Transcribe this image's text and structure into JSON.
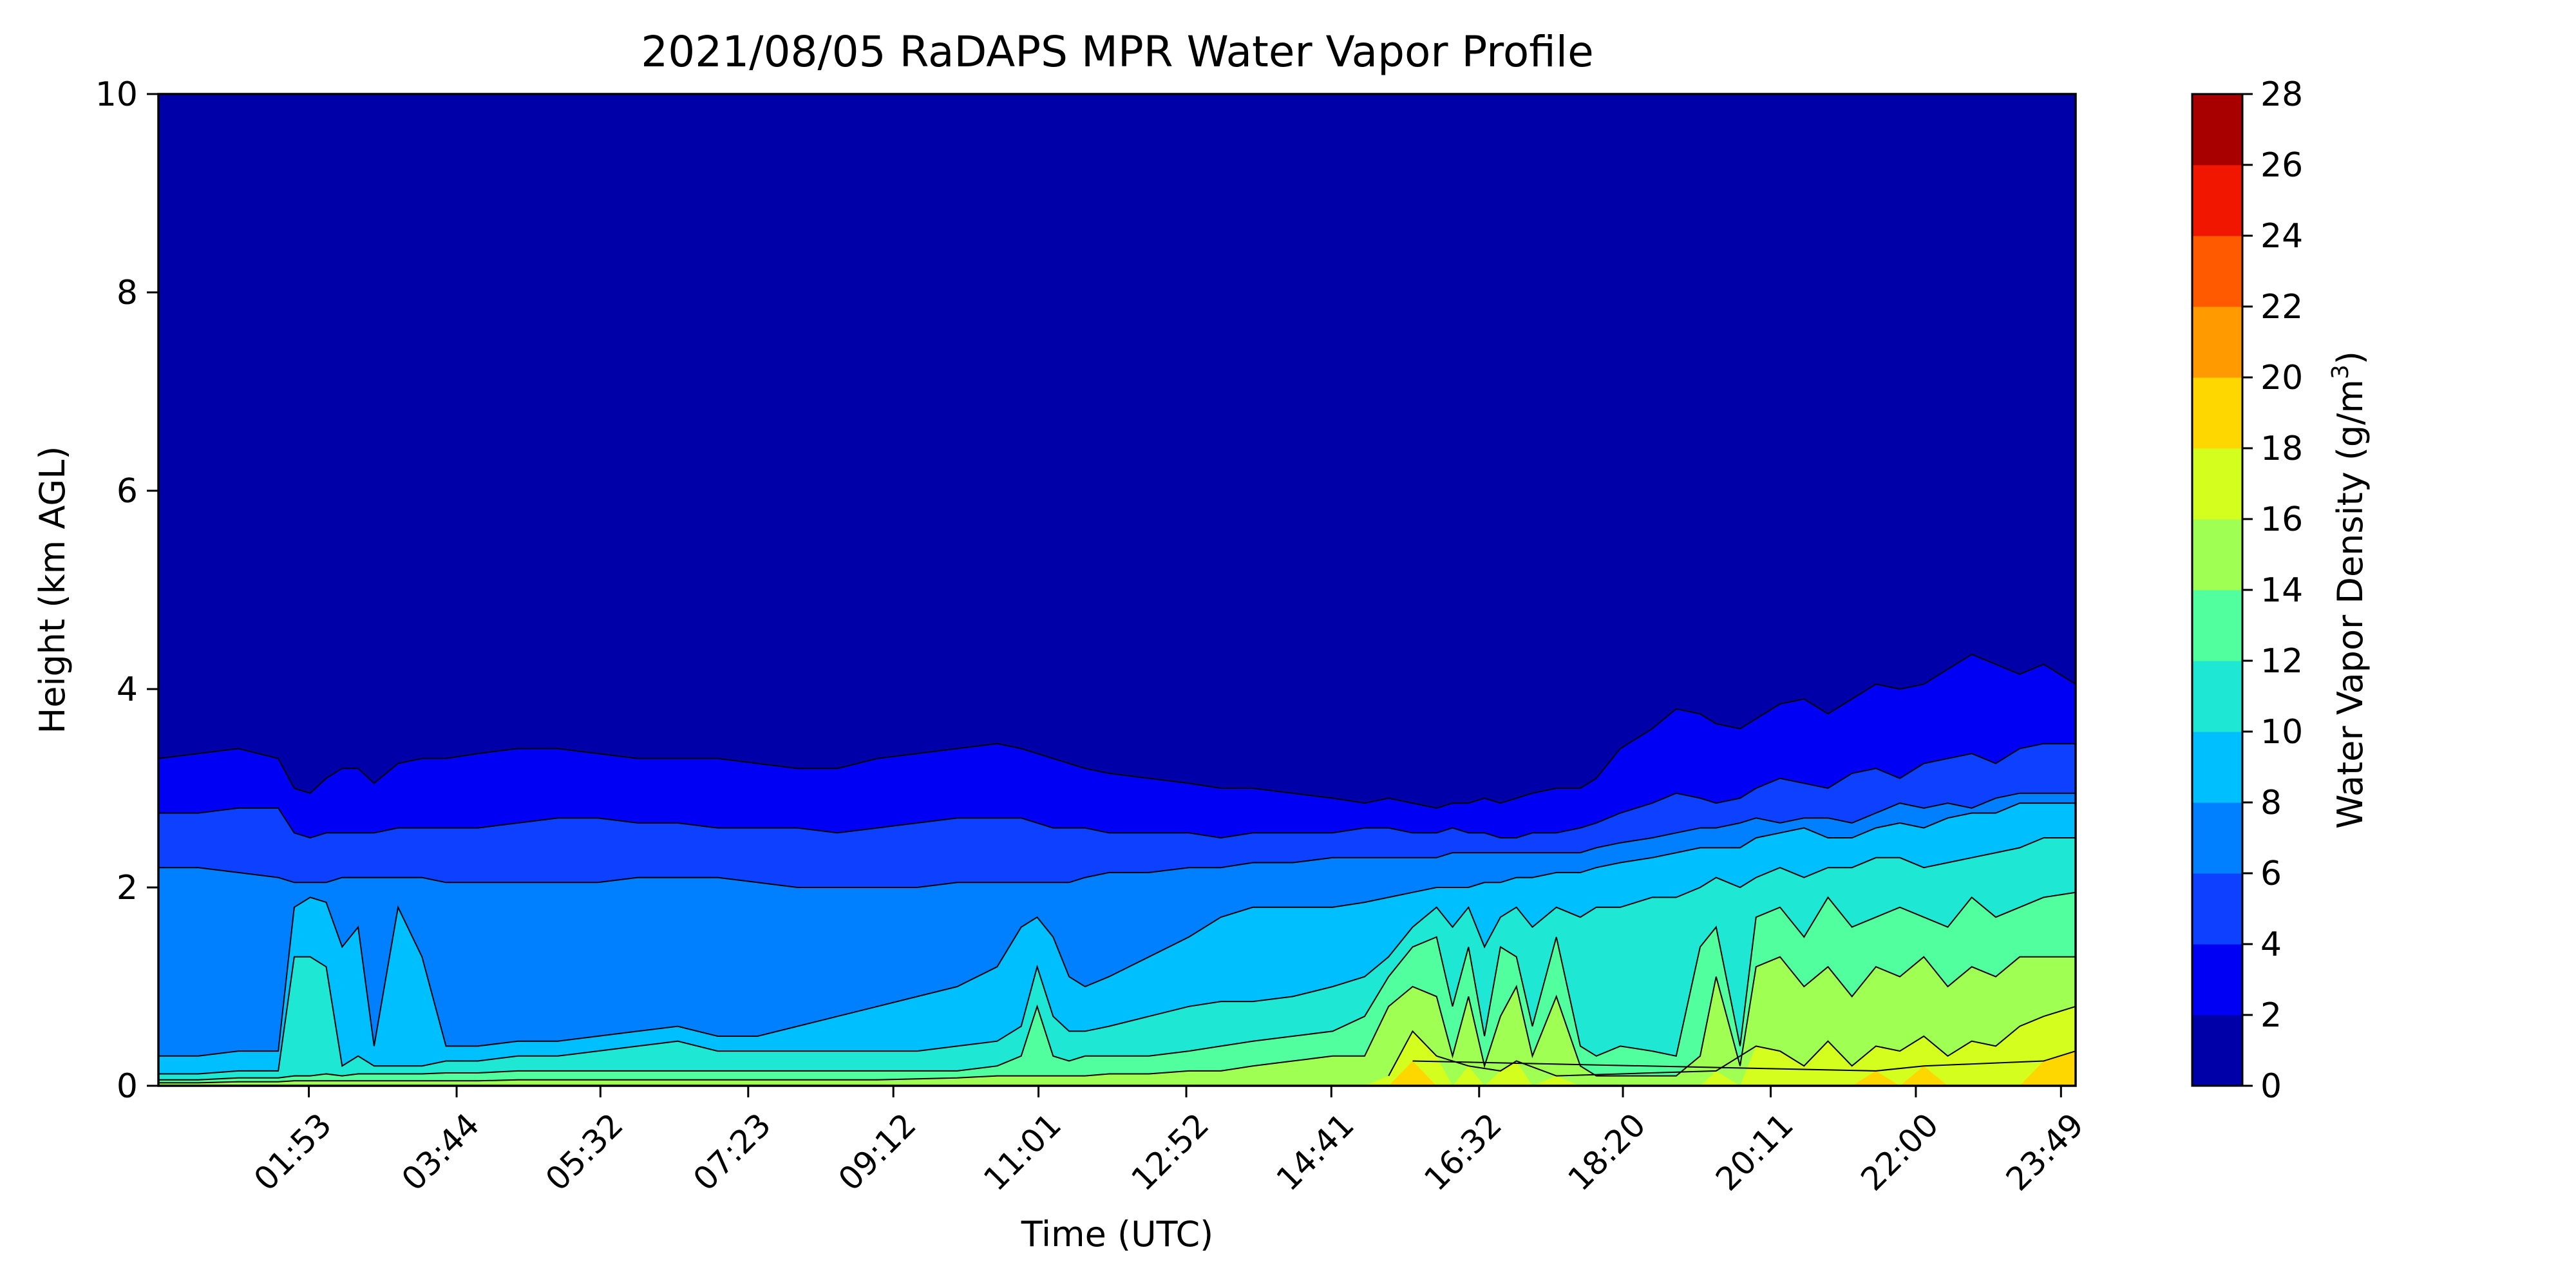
{
  "chart_data": {
    "type": "contour",
    "title": "2021/08/05 RaDAPS MPR Water Vapor Profile",
    "xlabel": "Time (UTC)",
    "ylabel": "Height (km AGL)",
    "colorbar_label": "Water Vapor Density (g/m",
    "colorbar_label_sup": "3",
    "colorbar_label_end": ")",
    "xlim": [
      0,
      24
    ],
    "ylim": [
      0,
      10
    ],
    "x_ticks": [
      1.883,
      3.733,
      5.533,
      7.383,
      9.2,
      11.017,
      12.867,
      14.683,
      16.533,
      18.333,
      20.183,
      22.0,
      23.817
    ],
    "x_tick_labels": [
      "01:53",
      "03:44",
      "05:32",
      "07:23",
      "09:12",
      "11:01",
      "12:52",
      "14:41",
      "16:32",
      "18:20",
      "20:11",
      "22:00",
      "23:49"
    ],
    "y_ticks": [
      0,
      2,
      4,
      6,
      8,
      10
    ],
    "y_tick_labels": [
      "0",
      "2",
      "4",
      "6",
      "8",
      "10"
    ],
    "levels": [
      0,
      2,
      4,
      6,
      8,
      10,
      12,
      14,
      16,
      18,
      20,
      22,
      24,
      26,
      28
    ],
    "level_labels": [
      "0",
      "2",
      "4",
      "6",
      "8",
      "10",
      "12",
      "14",
      "16",
      "18",
      "20",
      "22",
      "24",
      "26",
      "28"
    ],
    "level_colors": [
      "#0000a8",
      "#0000f5",
      "#0d41ff",
      "#0080ff",
      "#00bfff",
      "#1ee8d4",
      "#52ff9f",
      "#9fff52",
      "#d4ff1e",
      "#ffd700",
      "#ff9a00",
      "#ff5a00",
      "#f01600",
      "#a80000"
    ],
    "x": [
      0.0,
      0.5,
      1.0,
      1.5,
      1.7,
      1.9,
      2.1,
      2.3,
      2.5,
      2.7,
      3.0,
      3.3,
      3.6,
      4.0,
      4.5,
      5.0,
      5.5,
      6.0,
      6.5,
      7.0,
      7.5,
      8.0,
      8.5,
      9.0,
      9.5,
      10.0,
      10.5,
      10.8,
      11.0,
      11.2,
      11.4,
      11.6,
      11.9,
      12.4,
      12.9,
      13.3,
      13.7,
      14.2,
      14.7,
      15.1,
      15.4,
      15.7,
      16.0,
      16.2,
      16.4,
      16.6,
      16.8,
      17.0,
      17.2,
      17.5,
      17.8,
      18.0,
      18.3,
      18.7,
      19.0,
      19.3,
      19.5,
      19.8,
      20.0,
      20.3,
      20.6,
      20.9,
      21.2,
      21.5,
      21.8,
      22.1,
      22.4,
      22.7,
      23.0,
      23.3,
      23.6,
      24.0
    ],
    "height_km_contours": [
      {
        "level": 2,
        "y": [
          3.3,
          3.35,
          3.4,
          3.3,
          3.0,
          2.95,
          3.1,
          3.2,
          3.2,
          3.05,
          3.25,
          3.3,
          3.3,
          3.35,
          3.4,
          3.4,
          3.35,
          3.3,
          3.3,
          3.3,
          3.25,
          3.2,
          3.2,
          3.3,
          3.35,
          3.4,
          3.45,
          3.4,
          3.35,
          3.3,
          3.25,
          3.2,
          3.15,
          3.1,
          3.05,
          3.0,
          3.0,
          2.95,
          2.9,
          2.85,
          2.9,
          2.85,
          2.8,
          2.85,
          2.85,
          2.9,
          2.85,
          2.9,
          2.95,
          3.0,
          3.0,
          3.1,
          3.4,
          3.6,
          3.8,
          3.75,
          3.65,
          3.6,
          3.7,
          3.85,
          3.9,
          3.75,
          3.9,
          4.05,
          4.0,
          4.05,
          4.2,
          4.35,
          4.25,
          4.15,
          4.25,
          4.05
        ]
      },
      {
        "level": 4,
        "y": [
          2.75,
          2.75,
          2.8,
          2.8,
          2.55,
          2.5,
          2.55,
          2.55,
          2.55,
          2.55,
          2.6,
          2.6,
          2.6,
          2.6,
          2.65,
          2.7,
          2.7,
          2.65,
          2.65,
          2.6,
          2.6,
          2.6,
          2.55,
          2.6,
          2.65,
          2.7,
          2.7,
          2.7,
          2.65,
          2.6,
          2.6,
          2.6,
          2.55,
          2.55,
          2.55,
          2.5,
          2.55,
          2.55,
          2.55,
          2.6,
          2.6,
          2.55,
          2.55,
          2.6,
          2.55,
          2.55,
          2.5,
          2.5,
          2.55,
          2.55,
          2.6,
          2.65,
          2.75,
          2.85,
          2.95,
          2.9,
          2.85,
          2.9,
          3.0,
          3.1,
          3.05,
          3.0,
          3.15,
          3.2,
          3.1,
          3.25,
          3.3,
          3.35,
          3.25,
          3.4,
          3.45,
          3.45
        ]
      },
      {
        "level": 6,
        "y": [
          2.2,
          2.2,
          2.15,
          2.1,
          2.05,
          2.05,
          2.05,
          2.1,
          2.1,
          2.1,
          2.1,
          2.1,
          2.05,
          2.05,
          2.05,
          2.05,
          2.05,
          2.1,
          2.1,
          2.1,
          2.05,
          2.0,
          2.0,
          2.0,
          2.0,
          2.05,
          2.05,
          2.05,
          2.05,
          2.05,
          2.05,
          2.1,
          2.15,
          2.15,
          2.2,
          2.2,
          2.25,
          2.25,
          2.3,
          2.3,
          2.3,
          2.3,
          2.3,
          2.35,
          2.35,
          2.35,
          2.35,
          2.35,
          2.35,
          2.35,
          2.35,
          2.4,
          2.45,
          2.5,
          2.55,
          2.6,
          2.6,
          2.65,
          2.7,
          2.65,
          2.7,
          2.7,
          2.65,
          2.75,
          2.85,
          2.8,
          2.85,
          2.8,
          2.9,
          2.95,
          2.95,
          2.95
        ]
      },
      {
        "level": 8,
        "y": [
          0.3,
          0.3,
          0.35,
          0.35,
          1.8,
          1.9,
          1.85,
          1.4,
          1.6,
          0.4,
          1.8,
          1.3,
          0.4,
          0.4,
          0.45,
          0.45,
          0.5,
          0.55,
          0.6,
          0.5,
          0.5,
          0.6,
          0.7,
          0.8,
          0.9,
          1.0,
          1.2,
          1.6,
          1.7,
          1.5,
          1.1,
          1.0,
          1.1,
          1.3,
          1.5,
          1.7,
          1.8,
          1.8,
          1.8,
          1.85,
          1.9,
          1.95,
          2.0,
          2.0,
          2.0,
          2.05,
          2.05,
          2.1,
          2.1,
          2.15,
          2.15,
          2.2,
          2.25,
          2.3,
          2.35,
          2.4,
          2.4,
          2.4,
          2.5,
          2.55,
          2.6,
          2.5,
          2.5,
          2.6,
          2.65,
          2.6,
          2.7,
          2.75,
          2.75,
          2.85,
          2.85,
          2.85
        ]
      },
      {
        "level": 10,
        "y": [
          0.12,
          0.12,
          0.15,
          0.15,
          1.3,
          1.3,
          1.2,
          0.2,
          0.3,
          0.2,
          0.2,
          0.2,
          0.25,
          0.25,
          0.3,
          0.3,
          0.35,
          0.4,
          0.45,
          0.35,
          0.35,
          0.35,
          0.35,
          0.35,
          0.35,
          0.4,
          0.45,
          0.6,
          1.2,
          0.7,
          0.55,
          0.55,
          0.6,
          0.7,
          0.8,
          0.85,
          0.85,
          0.9,
          1.0,
          1.1,
          1.3,
          1.6,
          1.8,
          1.6,
          1.8,
          1.4,
          1.7,
          1.8,
          1.6,
          1.8,
          1.7,
          1.8,
          1.8,
          1.9,
          1.9,
          2.0,
          2.1,
          2.0,
          2.1,
          2.2,
          2.1,
          2.2,
          2.2,
          2.3,
          2.3,
          2.2,
          2.25,
          2.3,
          2.35,
          2.4,
          2.5,
          2.5
        ]
      },
      {
        "level": 12,
        "y": [
          0.06,
          0.06,
          0.08,
          0.08,
          0.1,
          0.1,
          0.12,
          0.1,
          0.12,
          0.12,
          0.12,
          0.12,
          0.13,
          0.13,
          0.15,
          0.15,
          0.15,
          0.15,
          0.15,
          0.15,
          0.15,
          0.15,
          0.15,
          0.15,
          0.15,
          0.15,
          0.2,
          0.3,
          0.8,
          0.3,
          0.25,
          0.3,
          0.3,
          0.3,
          0.35,
          0.4,
          0.45,
          0.5,
          0.55,
          0.7,
          1.1,
          1.4,
          1.5,
          0.8,
          1.4,
          0.5,
          1.4,
          1.3,
          0.6,
          1.5,
          0.4,
          0.3,
          0.4,
          0.35,
          0.3,
          1.4,
          1.6,
          0.4,
          1.7,
          1.8,
          1.5,
          1.9,
          1.6,
          1.7,
          1.8,
          1.7,
          1.6,
          1.9,
          1.7,
          1.8,
          1.9,
          1.95
        ]
      },
      {
        "level": 14,
        "y": [
          0.03,
          0.03,
          0.04,
          0.04,
          0.05,
          0.05,
          0.05,
          0.05,
          0.05,
          0.05,
          0.05,
          0.05,
          0.05,
          0.05,
          0.06,
          0.06,
          0.06,
          0.06,
          0.06,
          0.06,
          0.06,
          0.06,
          0.06,
          0.06,
          0.07,
          0.08,
          0.1,
          0.1,
          0.1,
          0.1,
          0.1,
          0.1,
          0.12,
          0.12,
          0.15,
          0.15,
          0.2,
          0.25,
          0.3,
          0.3,
          0.8,
          1.0,
          0.9,
          0.3,
          0.9,
          0.2,
          0.7,
          1.0,
          0.3,
          0.9,
          0.2,
          0.1,
          0.1,
          0.1,
          0.1,
          0.3,
          1.1,
          0.2,
          1.2,
          1.3,
          1.0,
          1.2,
          0.9,
          1.2,
          1.1,
          1.3,
          1.0,
          1.2,
          1.1,
          1.3,
          1.3,
          1.3
        ]
      },
      {
        "level": 16,
        "y": [
          0,
          0,
          0,
          0,
          0,
          0,
          0,
          0,
          0,
          0,
          0,
          0,
          0,
          0,
          0,
          0,
          0,
          0,
          0,
          0,
          0,
          0,
          0,
          0,
          0,
          0,
          0,
          0,
          0,
          0,
          0,
          0,
          0,
          0,
          0,
          0,
          0,
          0,
          0,
          0,
          0.1,
          0.55,
          0.3,
          0,
          0.2,
          0,
          0.15,
          0.25,
          0,
          0.1,
          0,
          0,
          0,
          0,
          0,
          0,
          0.15,
          0,
          0.4,
          0.35,
          0.2,
          0.45,
          0.2,
          0.4,
          0.35,
          0.5,
          0.3,
          0.45,
          0.4,
          0.6,
          0.7,
          0.8
        ]
      },
      {
        "level": 18,
        "y": [
          0,
          0,
          0,
          0,
          0,
          0,
          0,
          0,
          0,
          0,
          0,
          0,
          0,
          0,
          0,
          0,
          0,
          0,
          0,
          0,
          0,
          0,
          0,
          0,
          0,
          0,
          0,
          0,
          0,
          0,
          0,
          0,
          0,
          0,
          0,
          0,
          0,
          0,
          0,
          0,
          0,
          0.25,
          0,
          0,
          0,
          0,
          0,
          0,
          0,
          0,
          0,
          0,
          0,
          0,
          0,
          0,
          0,
          0,
          0,
          0,
          0,
          0,
          0,
          0.15,
          0,
          0.2,
          0,
          0,
          0,
          0,
          0.25,
          0.35
        ]
      }
    ]
  }
}
